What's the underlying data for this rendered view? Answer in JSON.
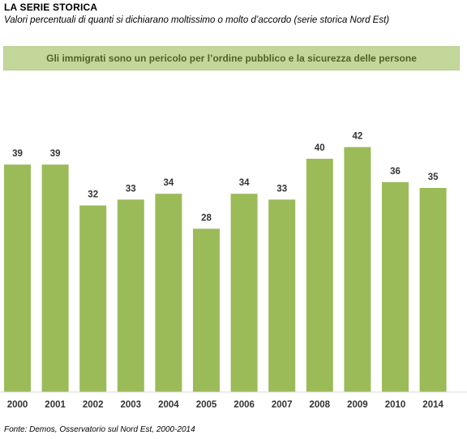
{
  "header": {
    "title": "LA SERIE STORICA",
    "subtitle": "Valori percentuali di quanti si dichiarano moltissimo o molto d’accordo (serie storica Nord Est)"
  },
  "banner": {
    "text": "Gli immigrati sono un pericolo per l’ordine pubblico  e la sicurezza delle persone"
  },
  "footer": {
    "source": "Fonte: Demos, Osservatorio sul Nord Est, 2000-2014"
  },
  "colors": {
    "bar": "#9bbb59",
    "banner_bg": "#c4d79b",
    "banner_text": "#4f6228"
  },
  "chart_data": {
    "type": "bar",
    "categories": [
      "2000",
      "2001",
      "2002",
      "2003",
      "2004",
      "2005",
      "2006",
      "2007",
      "2008",
      "2009",
      "2010",
      "2014"
    ],
    "values": [
      39,
      39,
      32,
      33,
      34,
      28,
      34,
      33,
      40,
      42,
      36,
      35
    ],
    "title": "",
    "xlabel": "",
    "ylabel": "",
    "ylim": [
      0,
      50
    ],
    "grid": false,
    "data_labels": true
  }
}
